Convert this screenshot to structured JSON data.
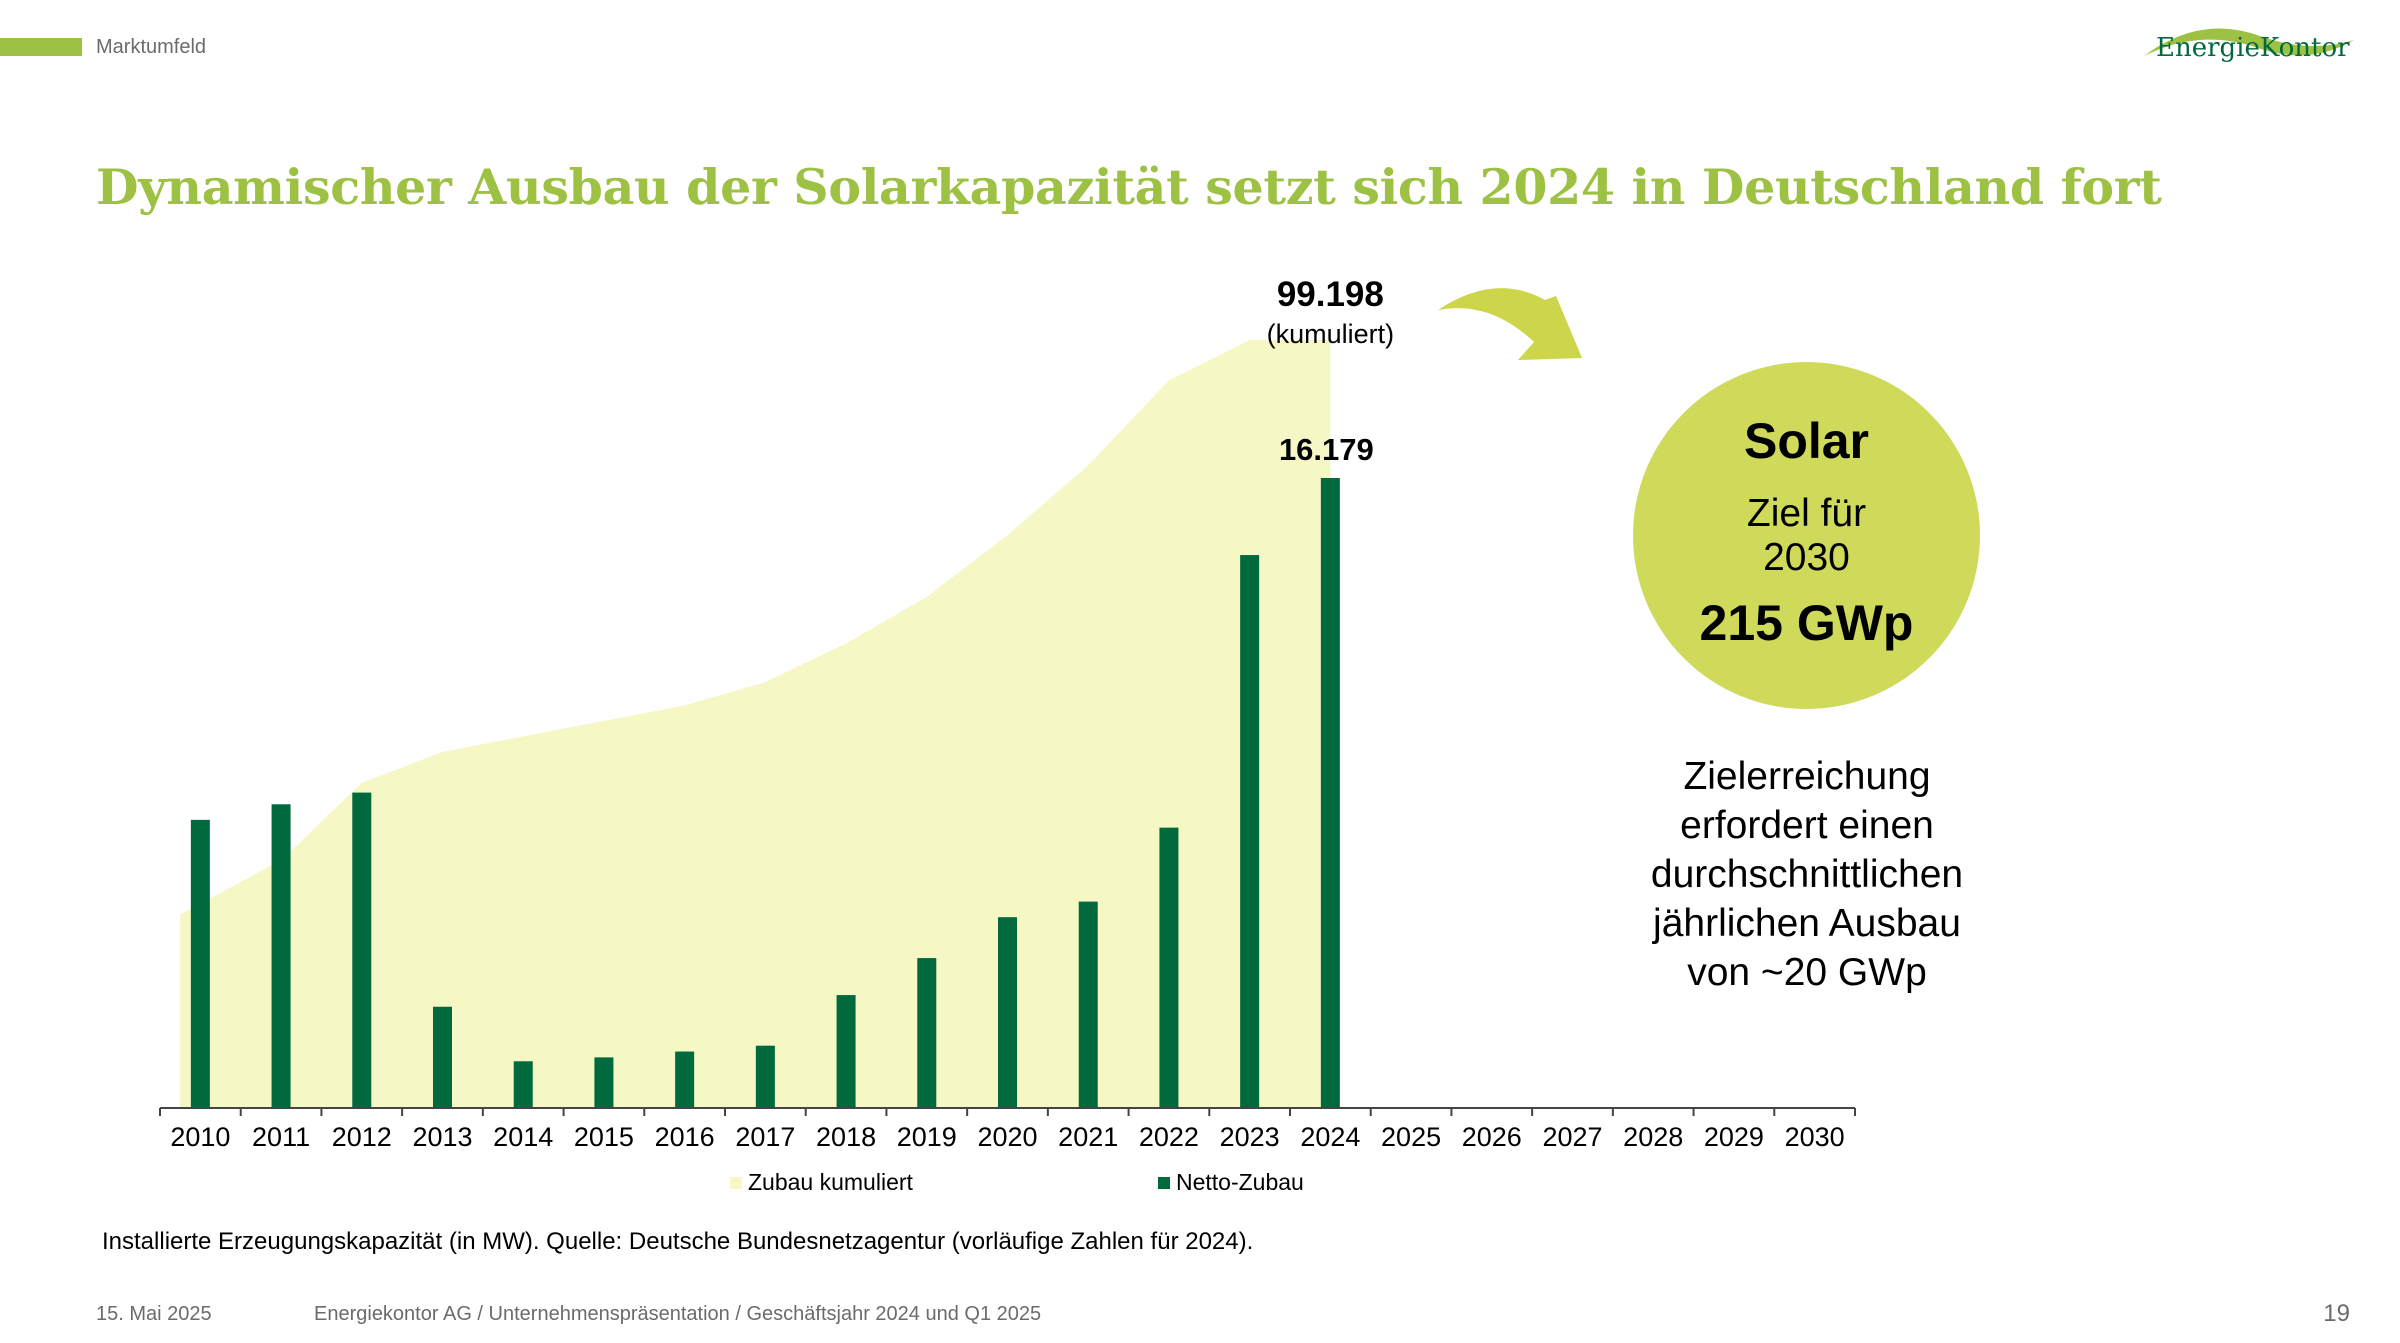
{
  "header": {
    "section_label": "Marktumfeld",
    "logo_text": "EnergieKontor",
    "title": "Dynamischer Ausbau der Solarkapazität setzt sich 2024 in Deutschland fort"
  },
  "colors": {
    "accent_green": "#9dc143",
    "bar_green": "#00693e",
    "area_fill": "#f5f7c4",
    "circle_fill": "#cfd95a",
    "arrow_fill": "#cdd54a"
  },
  "chart_data": {
    "type": "bar",
    "categories": [
      "2010",
      "2011",
      "2012",
      "2013",
      "2014",
      "2015",
      "2016",
      "2017",
      "2018",
      "2019",
      "2020",
      "2021",
      "2022",
      "2023",
      "2024",
      "2025",
      "2026",
      "2027",
      "2028",
      "2029",
      "2030"
    ],
    "series": [
      {
        "name": "Zubau kumuliert",
        "type": "area",
        "values": [
          25000,
          32000,
          42000,
          46000,
          48000,
          50000,
          52000,
          55000,
          60000,
          66000,
          74000,
          83000,
          94000,
          99198,
          99198,
          null,
          null,
          null,
          null,
          null,
          null
        ]
      },
      {
        "name": "Netto-Zubau",
        "type": "bar",
        "values": [
          7400,
          7800,
          8100,
          2600,
          1200,
          1300,
          1450,
          1600,
          2900,
          3850,
          4900,
          5300,
          7200,
          14200,
          16179,
          null,
          null,
          null,
          null,
          null,
          null
        ]
      }
    ],
    "annotations": [
      {
        "value": "99.198",
        "text": "(kumuliert)",
        "category": "2024"
      },
      {
        "value": "16.179",
        "category": "2024"
      }
    ],
    "legend": {
      "placement": "bottom",
      "items": [
        "Zubau kumuliert",
        "Netto-Zubau"
      ]
    },
    "source_note": "Installierte Erzeugungskapazität (in MW). Quelle: Deutsche Bundesnetzagentur (vorläufige Zahlen für 2024)."
  },
  "target": {
    "title": "Solar",
    "subtitle_line1": "Ziel für",
    "subtitle_line2": "2030",
    "value": "215 GWp"
  },
  "requirement": {
    "lines": [
      "Zielerreichung",
      "erfordert einen",
      "durchschnittlichen",
      "jährlichen Ausbau",
      "von ~20 GWp"
    ]
  },
  "footer": {
    "date": "15. Mai 2025",
    "text": "Energiekontor AG / Unternehmenspräsentation / Geschäftsjahr 2024 und Q1 2025",
    "page": "19"
  }
}
